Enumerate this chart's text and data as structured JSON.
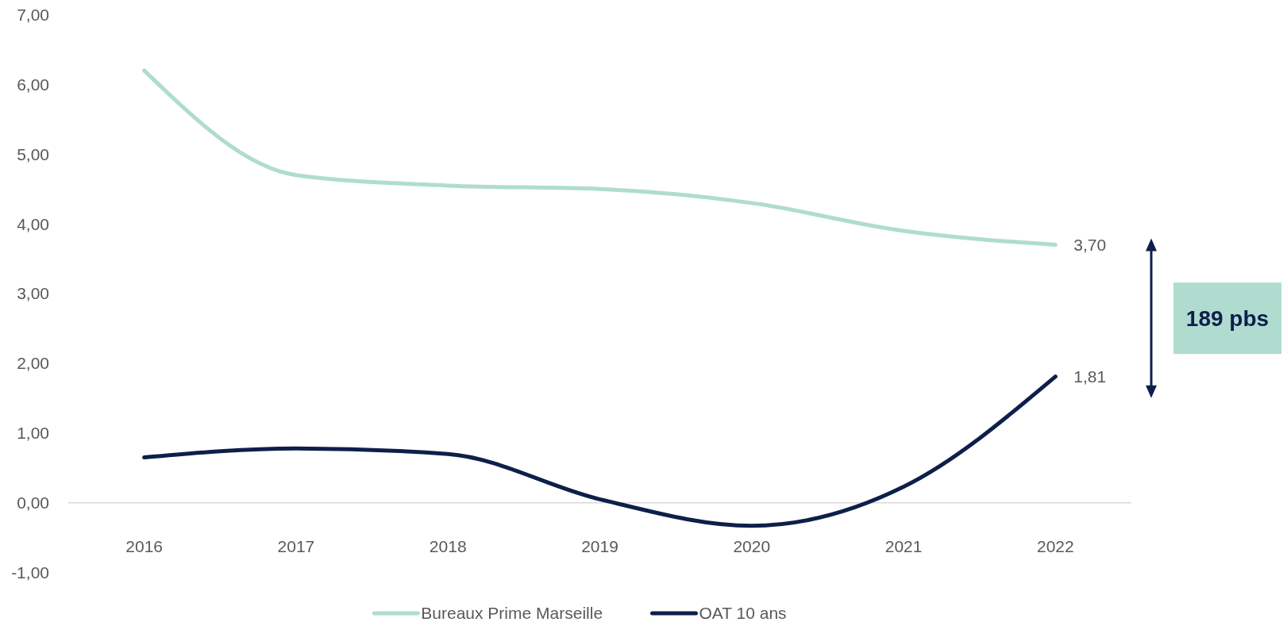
{
  "chart_data": {
    "type": "line",
    "categories": [
      "2016",
      "2017",
      "2018",
      "2019",
      "2020",
      "2021",
      "2022"
    ],
    "series": [
      {
        "name": "Bureaux Prime Marseille",
        "color": "#b0dcd0",
        "values": [
          6.2,
          4.7,
          4.55,
          4.5,
          4.3,
          3.9,
          3.7
        ],
        "value_labels": [
          null,
          null,
          null,
          null,
          null,
          null,
          "3,70"
        ]
      },
      {
        "name": "OAT 10 ans",
        "color": "#0d1f4a",
        "values": [
          0.65,
          0.78,
          0.7,
          0.05,
          -0.33,
          0.23,
          1.81
        ],
        "value_labels": [
          null,
          null,
          null,
          null,
          null,
          null,
          "1,81"
        ]
      }
    ],
    "ylim": [
      -1,
      7
    ],
    "yticks": [
      {
        "value": -1,
        "label": "-1,00"
      },
      {
        "value": 0,
        "label": "0,00"
      },
      {
        "value": 1,
        "label": "1,00"
      },
      {
        "value": 2,
        "label": "2,00"
      },
      {
        "value": 3,
        "label": "3,00"
      },
      {
        "value": 4,
        "label": "4,00"
      },
      {
        "value": 5,
        "label": "5,00"
      },
      {
        "value": 6,
        "label": "6,00"
      },
      {
        "value": 7,
        "label": "7,00"
      }
    ],
    "legend": "bottom",
    "annotations": [
      "189 pbs"
    ]
  }
}
